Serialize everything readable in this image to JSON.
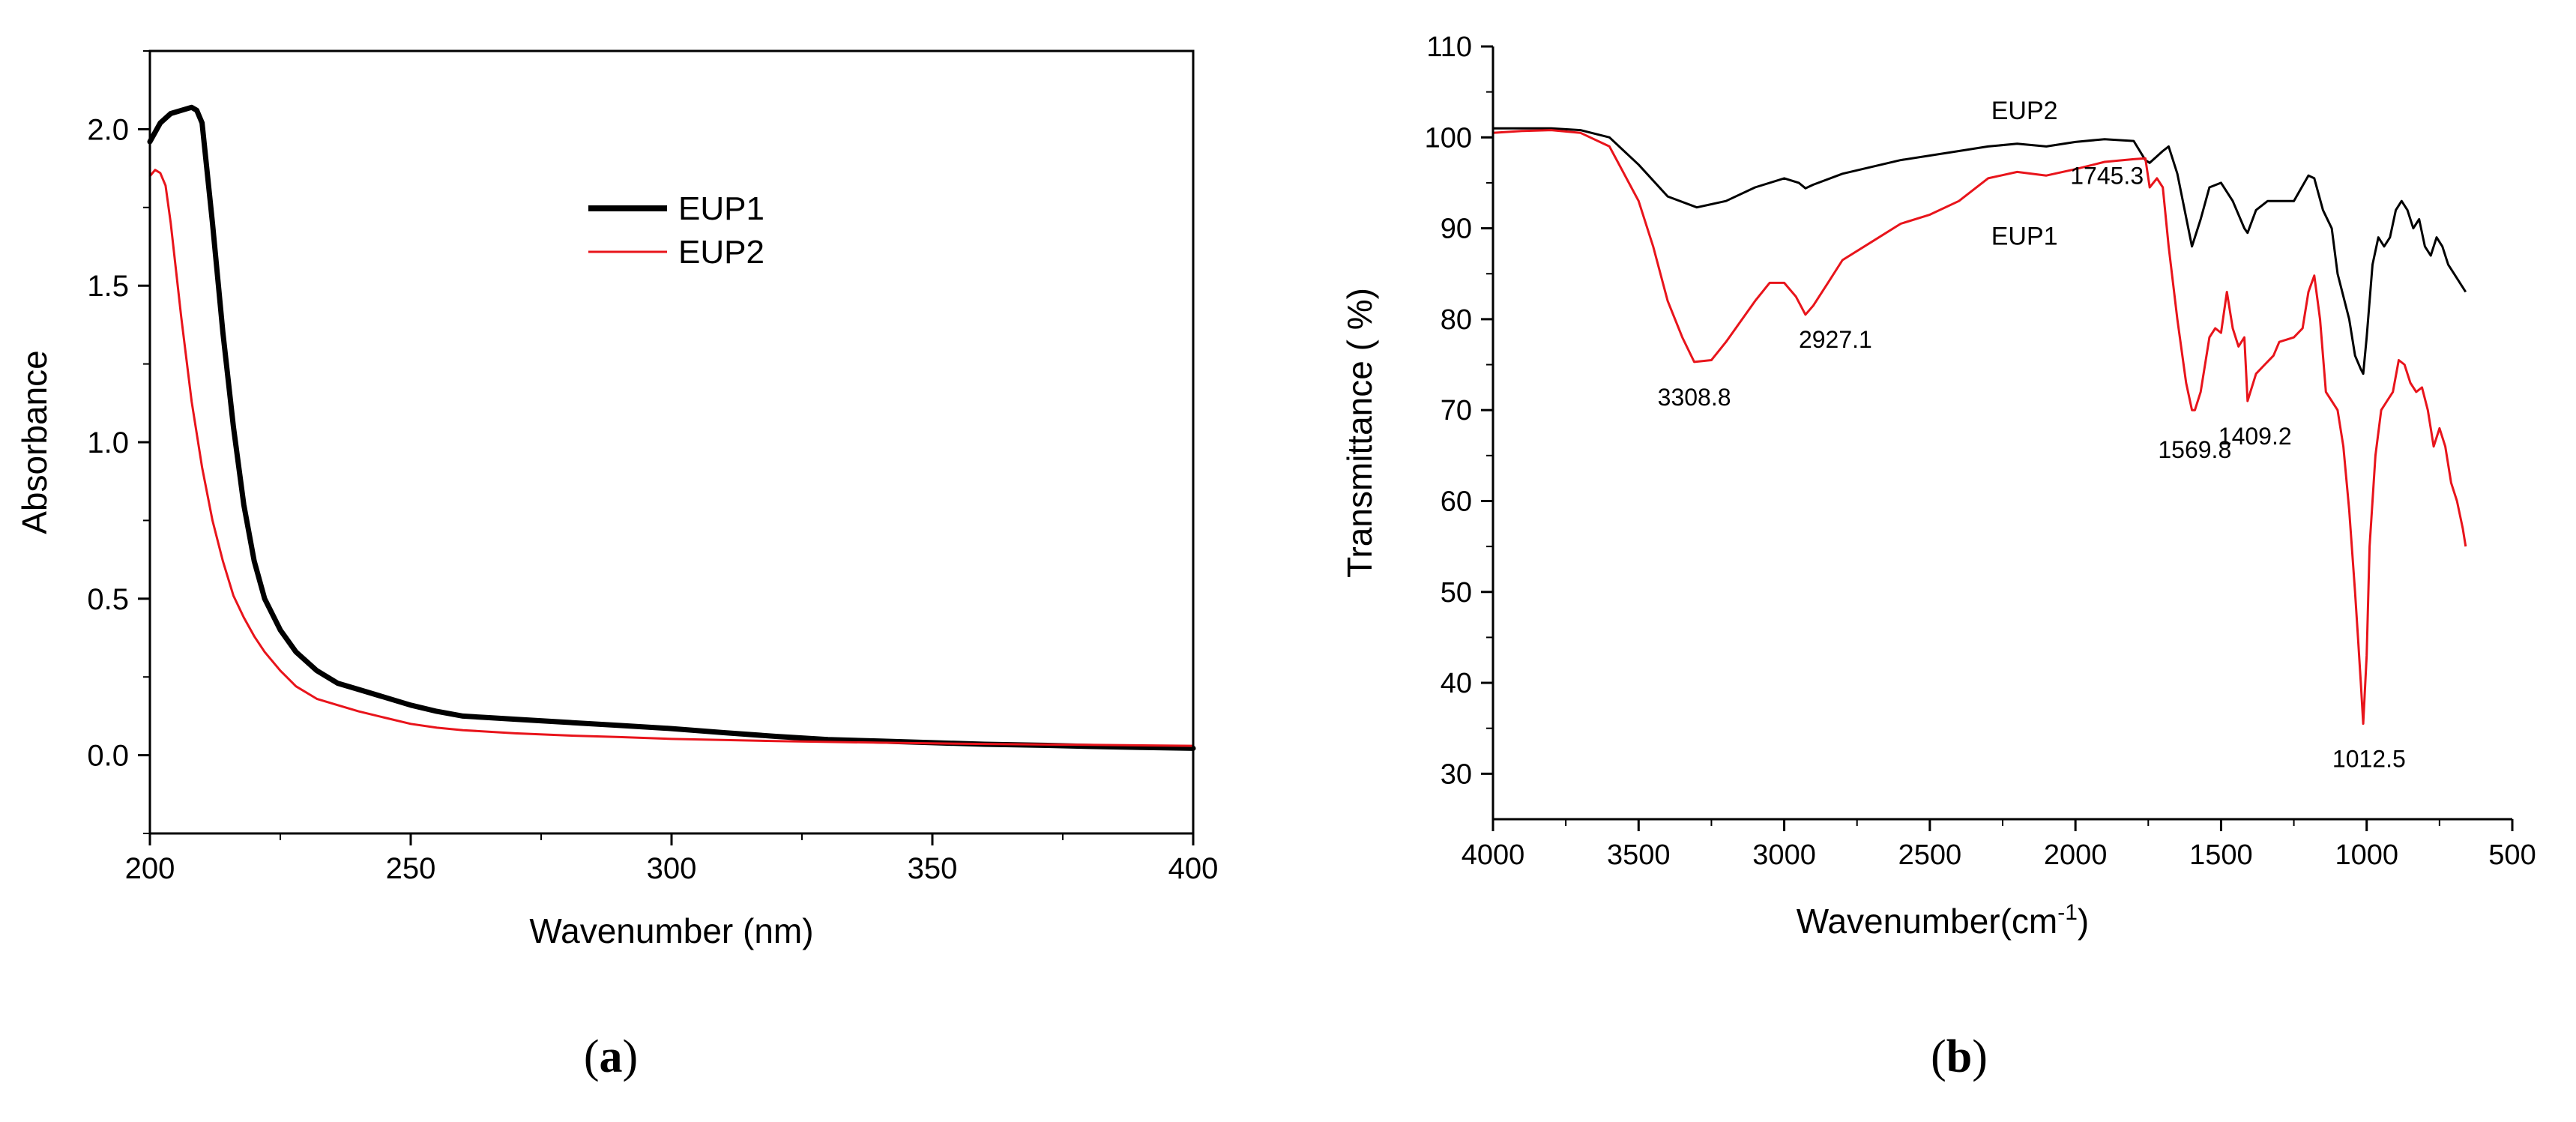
{
  "chart_data": [
    {
      "type": "line",
      "panel_label": "a",
      "title": "",
      "xlabel": "Wavenumber (nm)",
      "ylabel": "Absorbance",
      "xlim": [
        200,
        400
      ],
      "ylim": [
        -0.25,
        2.25
      ],
      "xticks": [
        200,
        250,
        300,
        350,
        400
      ],
      "yticks": [
        0.0,
        0.5,
        1.0,
        1.5,
        2.0
      ],
      "xtick_labels": [
        "200",
        "250",
        "300",
        "350",
        "400"
      ],
      "ytick_labels": [
        "0.0",
        "0.5",
        "1.0",
        "1.5",
        "2.0"
      ],
      "legend_position": "upper-center-right",
      "series": [
        {
          "name": "EUP1",
          "color": "#000000",
          "x": [
            200,
            202,
            204,
            206,
            208,
            209,
            210,
            212,
            214,
            216,
            218,
            220,
            222,
            225,
            228,
            232,
            236,
            240,
            245,
            250,
            255,
            260,
            265,
            270,
            280,
            290,
            300,
            310,
            320,
            330,
            340,
            350,
            360,
            370,
            380,
            390,
            400
          ],
          "values": [
            1.96,
            2.02,
            2.05,
            2.06,
            2.07,
            2.06,
            2.02,
            1.7,
            1.35,
            1.05,
            0.8,
            0.62,
            0.5,
            0.4,
            0.33,
            0.27,
            0.23,
            0.21,
            0.185,
            0.16,
            0.14,
            0.125,
            0.12,
            0.115,
            0.105,
            0.095,
            0.085,
            0.072,
            0.06,
            0.05,
            0.045,
            0.04,
            0.035,
            0.032,
            0.028,
            0.025,
            0.022
          ]
        },
        {
          "name": "EUP2",
          "color": "#e8141b",
          "x": [
            200,
            201,
            202,
            203,
            204,
            205,
            206,
            208,
            210,
            212,
            214,
            216,
            218,
            220,
            222,
            225,
            228,
            232,
            236,
            240,
            245,
            250,
            255,
            260,
            270,
            280,
            290,
            300,
            320,
            340,
            360,
            380,
            400
          ],
          "values": [
            1.85,
            1.87,
            1.86,
            1.82,
            1.7,
            1.55,
            1.4,
            1.13,
            0.92,
            0.75,
            0.62,
            0.51,
            0.44,
            0.38,
            0.33,
            0.27,
            0.22,
            0.18,
            0.16,
            0.14,
            0.12,
            0.1,
            0.088,
            0.08,
            0.07,
            0.063,
            0.058,
            0.052,
            0.045,
            0.04,
            0.036,
            0.033,
            0.03
          ]
        }
      ]
    },
    {
      "type": "line",
      "panel_label": "b",
      "title": "",
      "xlabel": "Wavenumber(cm-1)",
      "xlabel_main": "Wavenumber(cm",
      "xlabel_sup": "-1",
      "xlabel_close": ")",
      "ylabel": "Transmittance ( %)",
      "xlim": [
        4000,
        500
      ],
      "ylim": [
        25,
        110
      ],
      "xticks": [
        4000,
        3500,
        3000,
        2500,
        2000,
        1500,
        1000,
        500
      ],
      "yticks": [
        30,
        40,
        50,
        60,
        70,
        80,
        90,
        100,
        110
      ],
      "xtick_labels": [
        "4000",
        "3500",
        "3000",
        "2500",
        "2000",
        "1500",
        "1000",
        "500"
      ],
      "ytick_labels": [
        "30",
        "40",
        "50",
        "60",
        "70",
        "80",
        "90",
        "100",
        "110"
      ],
      "series": [
        {
          "name": "EUP2",
          "color": "#000000",
          "x": [
            4000,
            3900,
            3800,
            3700,
            3600,
            3500,
            3400,
            3300,
            3200,
            3100,
            3000,
            2950,
            2927,
            2900,
            2800,
            2600,
            2400,
            2300,
            2200,
            2100,
            2000,
            1900,
            1800,
            1760,
            1745,
            1700,
            1680,
            1650,
            1600,
            1570,
            1540,
            1500,
            1460,
            1420,
            1409,
            1380,
            1340,
            1300,
            1250,
            1200,
            1180,
            1150,
            1120,
            1100,
            1060,
            1040,
            1020,
            1012,
            1000,
            980,
            960,
            940,
            920,
            900,
            880,
            860,
            840,
            820,
            800,
            780,
            760,
            740,
            720,
            700,
            680,
            660
          ],
          "values": [
            101,
            101,
            101,
            100.8,
            100,
            97,
            93.5,
            92.3,
            93,
            94.5,
            95.5,
            95,
            94.4,
            94.8,
            96,
            97.5,
            98.5,
            99,
            99.3,
            99,
            99.5,
            99.8,
            99.6,
            97.5,
            97.2,
            98.5,
            99,
            96,
            88,
            91,
            94.5,
            95,
            93,
            90,
            89.5,
            92,
            93,
            93,
            93,
            95.8,
            95.5,
            92,
            90,
            85,
            80,
            76,
            74.5,
            74,
            78,
            86,
            89,
            88,
            89,
            92,
            93,
            92,
            90,
            91,
            88,
            87,
            89,
            88,
            86,
            85,
            84,
            83
          ]
        },
        {
          "name": "EUP1",
          "color": "#e8141b",
          "x": [
            4000,
            3900,
            3800,
            3700,
            3600,
            3500,
            3450,
            3400,
            3350,
            3309,
            3250,
            3200,
            3100,
            3050,
            3000,
            2960,
            2927,
            2900,
            2850,
            2800,
            2700,
            2600,
            2500,
            2400,
            2300,
            2200,
            2100,
            2000,
            1900,
            1800,
            1760,
            1745,
            1720,
            1700,
            1680,
            1650,
            1620,
            1600,
            1590,
            1570,
            1540,
            1520,
            1500,
            1480,
            1460,
            1440,
            1420,
            1409,
            1380,
            1350,
            1320,
            1300,
            1250,
            1220,
            1200,
            1180,
            1160,
            1140,
            1120,
            1100,
            1080,
            1060,
            1040,
            1030,
            1020,
            1012,
            1000,
            990,
            970,
            950,
            930,
            910,
            890,
            870,
            850,
            830,
            810,
            790,
            770,
            750,
            730,
            710,
            690,
            670,
            660
          ],
          "values": [
            100.5,
            100.7,
            100.8,
            100.5,
            99,
            93,
            88,
            82,
            78,
            75.3,
            75.5,
            77.5,
            82,
            84,
            84,
            82.5,
            80.5,
            81.5,
            84,
            86.5,
            88.5,
            90.5,
            91.5,
            93,
            95.5,
            96.2,
            95.8,
            96.5,
            97.3,
            97.6,
            97.7,
            94.5,
            95.5,
            94.5,
            88,
            80,
            73,
            70,
            70,
            72,
            78,
            79,
            78.5,
            83,
            79,
            77,
            78,
            71,
            74,
            75,
            76,
            77.5,
            78,
            79,
            83,
            84.8,
            80,
            72,
            71,
            70,
            66,
            59,
            50,
            45,
            40,
            35.5,
            43,
            55,
            65,
            70,
            71,
            72,
            75.5,
            75,
            73,
            72,
            72.5,
            70,
            66,
            68,
            66,
            62,
            60,
            57,
            55
          ]
        }
      ],
      "annotations": [
        {
          "text": "3308.8",
          "x": 3308.8,
          "y": 75.3
        },
        {
          "text": "2927.1",
          "x": 2927.1,
          "y": 80.5
        },
        {
          "text": "1745.3",
          "x": 1745.3,
          "y": 97.2
        },
        {
          "text": "1569.8",
          "x": 1569.8,
          "y": 69.5
        },
        {
          "text": "1409.2",
          "x": 1409.2,
          "y": 71
        },
        {
          "text": "1012.5",
          "x": 1012.5,
          "y": 35.5
        }
      ],
      "series_labels": [
        {
          "text": "EUP2",
          "series": "EUP2"
        },
        {
          "text": "EUP1",
          "series": "EUP1"
        }
      ]
    }
  ],
  "captions": {
    "a": "(a)",
    "b": "(b)"
  }
}
